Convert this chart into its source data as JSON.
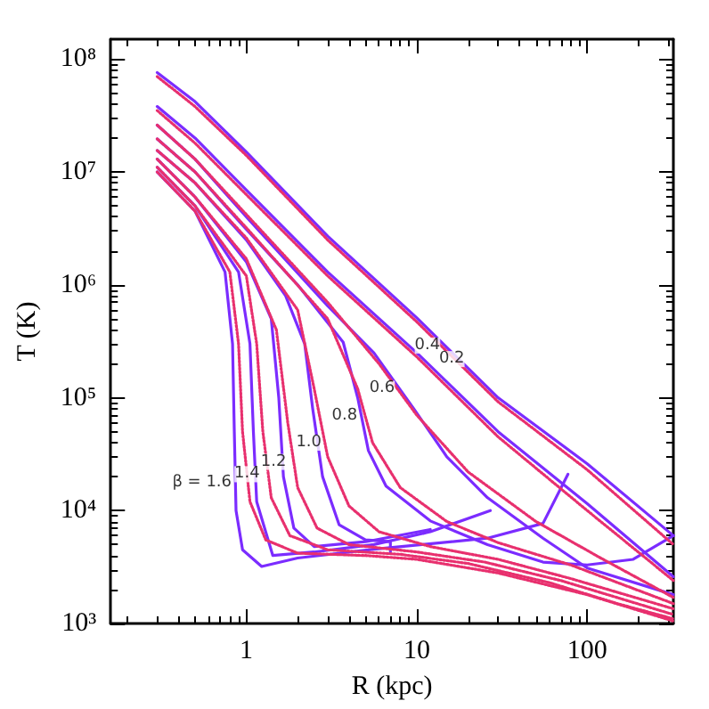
{
  "chart_data": {
    "type": "line",
    "xlabel": "R (kpc)",
    "ylabel": "T (K)",
    "log": "xy",
    "grid": false,
    "marker": "none",
    "xlim": [
      0.16,
      320
    ],
    "ylim": [
      1000,
      150000000
    ],
    "xticks": [
      1,
      10,
      100
    ],
    "yticks": [
      {
        "value": 1000,
        "label": "10³"
      },
      {
        "value": 10000,
        "label": "10⁴"
      },
      {
        "value": 100000,
        "label": "10⁵"
      },
      {
        "value": 1000000,
        "label": "10⁶"
      },
      {
        "value": 10000000,
        "label": "10⁷"
      },
      {
        "value": 100000000,
        "label": "10⁸"
      }
    ],
    "series": [
      {
        "color": "#e8306e",
        "line_style": "dotted",
        "x": [
          0.3,
          0.5,
          1,
          3,
          10,
          30,
          100,
          320
        ],
        "values": [
          70000000,
          38000000,
          14000000,
          2500000,
          470000,
          92000,
          23000,
          5000
        ]
      },
      {
        "color": "#e8306e",
        "line_style": "dotted",
        "x": [
          0.3,
          0.5,
          1,
          3,
          10,
          30,
          100,
          320
        ],
        "values": [
          35000000,
          18000000,
          6300000,
          1200000,
          230000,
          45000,
          10000,
          2400
        ]
      },
      {
        "color": "#e8306e",
        "line_style": "dotted",
        "x": [
          0.3,
          0.5,
          1,
          3,
          6,
          10,
          20,
          50,
          120,
          320
        ],
        "values": [
          26000000,
          13000000,
          4200000,
          700000,
          200000,
          70000,
          22000,
          8000,
          3800,
          1700
        ]
      },
      {
        "color": "#e8306e",
        "line_style": "dotted",
        "x": [
          0.3,
          0.5,
          1,
          3,
          4.5,
          5.5,
          8,
          15,
          30,
          80,
          320
        ],
        "values": [
          19600000,
          10000000,
          3200000,
          500000,
          120000,
          40000,
          16000,
          8000,
          5200,
          3300,
          1500
        ]
      },
      {
        "color": "#e8306e",
        "line_style": "dotted",
        "x": [
          0.3,
          0.5,
          1,
          2,
          2.5,
          3,
          4,
          6,
          12,
          30,
          80,
          320
        ],
        "values": [
          15500000,
          8000000,
          2600000,
          600000,
          120000,
          30000,
          11000,
          6500,
          4800,
          3700,
          2500,
          1350
        ]
      },
      {
        "color": "#e8306e",
        "line_style": "dotted",
        "x": [
          0.3,
          0.5,
          1,
          1.5,
          1.75,
          2,
          2.6,
          4,
          10,
          25,
          70,
          320
        ],
        "values": [
          13000000,
          6000000,
          1700000,
          400000,
          60000,
          16000,
          7000,
          5000,
          4300,
          3500,
          2400,
          1200
        ]
      },
      {
        "color": "#e8306e",
        "line_style": "dotted",
        "x": [
          0.3,
          0.5,
          1,
          1.15,
          1.25,
          1.4,
          1.8,
          3,
          8,
          20,
          60,
          150,
          320
        ],
        "values": [
          11000000,
          5000000,
          1200000,
          300000,
          50000,
          13000,
          6000,
          4500,
          4100,
          3400,
          2300,
          1500,
          1100
        ]
      },
      {
        "color": "#e8306e",
        "line_style": "dotted",
        "x": [
          0.3,
          0.5,
          0.8,
          0.9,
          0.95,
          1.05,
          1.3,
          2,
          5,
          10,
          30,
          100,
          320
        ],
        "values": [
          10000000,
          4500000,
          1300000,
          300000,
          50000,
          12000,
          5500,
          4200,
          4000,
          3700,
          2800,
          1800,
          1050
        ]
      },
      {
        "color": "#7b2cff",
        "line_style": "solid",
        "x": [
          0.3,
          0.5,
          1,
          3,
          10,
          30,
          100,
          320
        ],
        "values": [
          76000000,
          42000000,
          15000000,
          2700000,
          510000,
          100000,
          26000,
          6000
        ]
      },
      {
        "color": "#7b2cff",
        "line_style": "solid",
        "x": [
          0.3,
          0.5,
          1,
          3,
          10,
          30,
          100,
          320
        ],
        "values": [
          38000000,
          20000000,
          6900000,
          1300000,
          250000,
          50000,
          11500,
          2600
        ]
      },
      {
        "color": "#7b2cff",
        "line_style": "solid",
        "x": [
          0.3,
          0.5,
          1,
          3,
          5.6,
          9.6,
          15,
          26,
          55,
          100,
          320
        ],
        "values": [
          26000000,
          13000000,
          4000000,
          650000,
          250000,
          80000,
          30000,
          13000,
          5700,
          3100,
          1800
        ]
      },
      {
        "color": "#7b2cff",
        "line_style": "solid",
        "x": [
          0.3,
          0.5,
          1,
          2,
          3.7,
          4.5,
          5.2,
          6.6,
          12,
          26,
          55,
          100,
          186,
          320
        ],
        "values": [
          19600000,
          10000000,
          3100000,
          1000000,
          310000,
          100000,
          34000,
          16500,
          8100,
          5000,
          3500,
          3300,
          3700,
          6000
        ]
      },
      {
        "color": "#7b2cff",
        "line_style": "solid",
        "x": [
          0.3,
          0.5,
          1,
          1.7,
          2.2,
          2.45,
          2.8,
          3.5,
          5,
          7,
          7
        ],
        "values": [
          15500000,
          8000000,
          2500000,
          800000,
          300000,
          80000,
          20000,
          7500,
          5500,
          5300,
          4300
        ]
      },
      {
        "color": "#7b2cff",
        "line_style": "solid",
        "x": [
          0.3,
          0.5,
          1,
          1.4,
          1.55,
          1.65,
          1.9,
          2.5,
          5,
          12,
          11
        ],
        "values": [
          13000000,
          6000000,
          1600000,
          500000,
          100000,
          20000,
          7000,
          4800,
          5300,
          6800,
          6300
        ]
      },
      {
        "color": "#7b2cff",
        "line_style": "solid",
        "x": [
          0.3,
          0.5,
          0.9,
          1.05,
          1.1,
          1.15,
          1.43,
          2.5,
          5.6,
          12,
          27
        ],
        "values": [
          11000000,
          5000000,
          1300000,
          300000,
          50000,
          12000,
          4000,
          4300,
          5000,
          6500,
          10000
        ]
      },
      {
        "color": "#7b2cff",
        "line_style": "solid",
        "x": [
          0.3,
          0.5,
          0.75,
          0.83,
          0.85,
          0.87,
          0.95,
          1.23,
          2,
          5.6,
          26,
          55,
          77
        ],
        "values": [
          10000000,
          4500000,
          1300000,
          300000,
          50000,
          10000,
          4500,
          3200,
          3800,
          4550,
          5700,
          7700,
          21000
        ]
      }
    ],
    "annotations": [
      {
        "text": "0.2",
        "x": 20,
        "y": 220000
      },
      {
        "text": "0.4",
        "x": 14.4,
        "y": 290000
      },
      {
        "text": "0.6",
        "x": 7.8,
        "y": 120000
      },
      {
        "text": "0.8",
        "x": 4.7,
        "y": 69000
      },
      {
        "text": "1.0",
        "x": 2.9,
        "y": 40000
      },
      {
        "text": "1.2",
        "x": 1.8,
        "y": 27000
      },
      {
        "text": "1.4",
        "x": 1.26,
        "y": 21000
      },
      {
        "text": "β = 1.6",
        "x": 0.86,
        "y": 17500
      }
    ]
  }
}
